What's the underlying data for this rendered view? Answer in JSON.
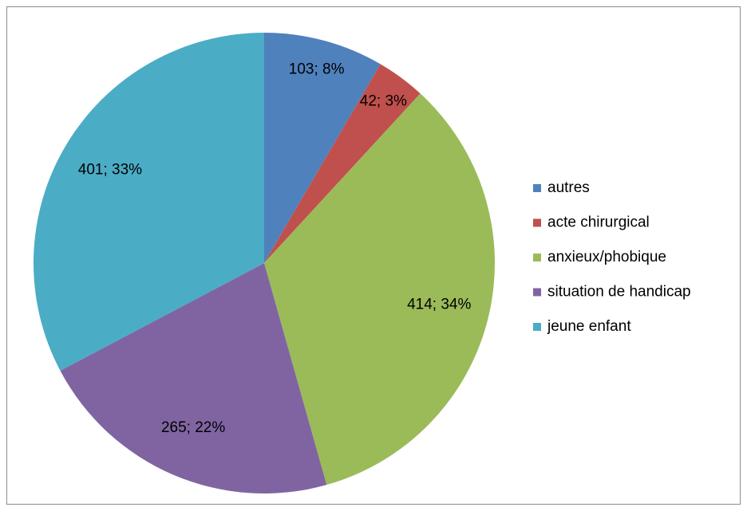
{
  "chart_data": {
    "type": "pie",
    "categories": [
      "autres",
      "acte chirurgical",
      "anxieux/phobique",
      "situation de handicap",
      "jeune enfant"
    ],
    "values": [
      103,
      42,
      414,
      265,
      401
    ],
    "value_labels": [
      "103; 8%",
      "42; 3%",
      "414; 34%",
      "265; 22%",
      "401; 33%"
    ],
    "colors": [
      "#4f81bd",
      "#c0504d",
      "#9bbb59",
      "#8064a2",
      "#4bacc6"
    ],
    "legend": "right"
  }
}
